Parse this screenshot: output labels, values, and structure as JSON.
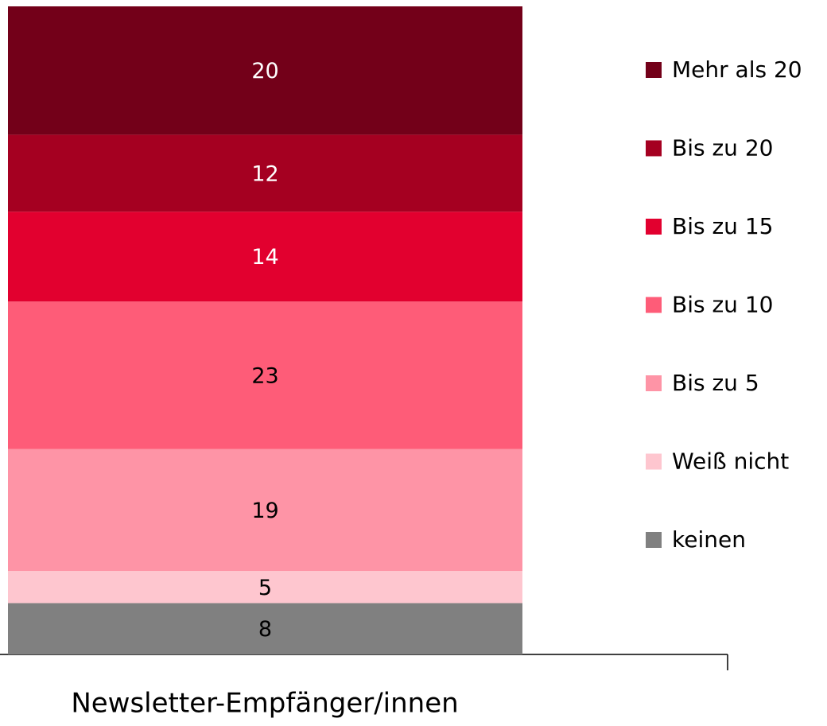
{
  "chart_data": {
    "type": "stacked_bar",
    "categories": [
      "Newsletter-Empfänger/innen"
    ],
    "series": [
      {
        "name": "Mehr als 20",
        "color": "#730019",
        "values": [
          20
        ]
      },
      {
        "name": "Bis zu 20",
        "color": "#a50021",
        "values": [
          12
        ]
      },
      {
        "name": "Bis zu 15",
        "color": "#e2002f",
        "values": [
          14
        ]
      },
      {
        "name": "Bis zu 10",
        "color": "#fe5c78",
        "values": [
          23
        ]
      },
      {
        "name": "Bis zu 5",
        "color": "#fe94a6",
        "values": [
          19
        ]
      },
      {
        "name": "Weiß nicht",
        "color": "#fec6cf",
        "values": [
          5
        ]
      },
      {
        "name": "keinen",
        "color": "#808080",
        "values": [
          8
        ]
      }
    ],
    "legend": "right"
  }
}
